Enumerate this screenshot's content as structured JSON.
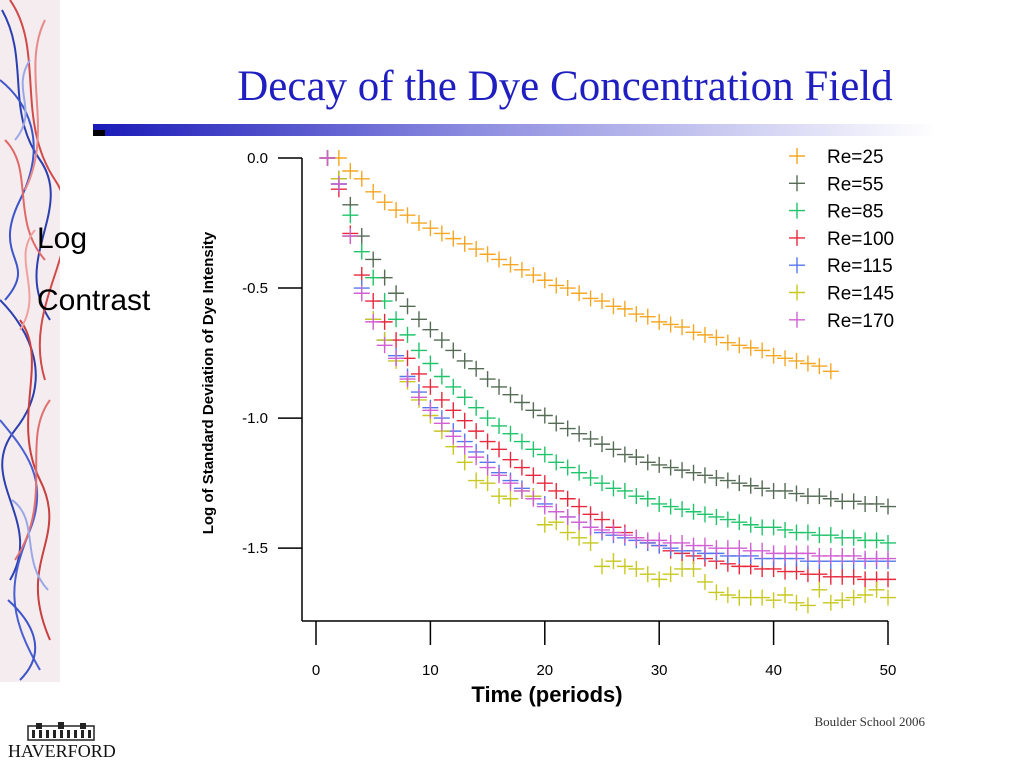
{
  "slide": {
    "title": "Decay of the Dye Concentration Field",
    "side_label_1": "Log",
    "side_label_2": "Contrast",
    "footer": "Boulder School 2006",
    "logo_text": "HAVERFORD",
    "title_color": "#1f1fc1"
  },
  "chart_data": {
    "type": "scatter",
    "marker": "plus",
    "title": "",
    "xlabel": "Time (periods)",
    "ylabel": "Log of Standard Deviation of Dye Intensity",
    "xlim": [
      0,
      50
    ],
    "ylim": [
      -1.78,
      0.0
    ],
    "xticks": [
      0,
      10,
      20,
      30,
      40,
      50
    ],
    "yticks": [
      0.0,
      -0.5,
      -1.0,
      -1.5
    ],
    "xtick_labels": [
      "0",
      "10",
      "20",
      "30",
      "40",
      "50"
    ],
    "ytick_labels": [
      "0.0",
      "-0.5",
      "-1.0",
      "-1.5"
    ],
    "grid": false,
    "legend_position": "top-right",
    "series": [
      {
        "name": "Re=25",
        "color": "#f5a623",
        "x": [
          1,
          2,
          3,
          4,
          5,
          6,
          7,
          8,
          9,
          10,
          11,
          12,
          13,
          14,
          15,
          16,
          17,
          18,
          19,
          20,
          21,
          22,
          23,
          24,
          25,
          26,
          27,
          28,
          29,
          30,
          31,
          32,
          33,
          34,
          35,
          36,
          37,
          38,
          39,
          40,
          41,
          42,
          43,
          44,
          45
        ],
        "y": [
          0.0,
          0.0,
          -0.05,
          -0.08,
          -0.13,
          -0.17,
          -0.2,
          -0.22,
          -0.25,
          -0.27,
          -0.29,
          -0.31,
          -0.33,
          -0.35,
          -0.37,
          -0.39,
          -0.41,
          -0.43,
          -0.45,
          -0.47,
          -0.49,
          -0.5,
          -0.52,
          -0.54,
          -0.55,
          -0.57,
          -0.58,
          -0.6,
          -0.61,
          -0.63,
          -0.64,
          -0.65,
          -0.67,
          -0.68,
          -0.69,
          -0.71,
          -0.72,
          -0.73,
          -0.74,
          -0.76,
          -0.77,
          -0.78,
          -0.79,
          -0.8,
          -0.82
        ]
      },
      {
        "name": "Re=55",
        "color": "#556b55",
        "x": [
          1,
          2,
          3,
          4,
          5,
          6,
          7,
          8,
          9,
          10,
          11,
          12,
          13,
          14,
          15,
          16,
          17,
          18,
          19,
          20,
          21,
          22,
          23,
          24,
          25,
          26,
          27,
          28,
          29,
          30,
          31,
          32,
          33,
          34,
          35,
          36,
          37,
          38,
          39,
          40,
          41,
          42,
          43,
          44,
          45,
          46,
          47,
          48,
          49,
          50
        ],
        "y": [
          0.0,
          -0.08,
          -0.18,
          -0.3,
          -0.39,
          -0.46,
          -0.52,
          -0.57,
          -0.62,
          -0.66,
          -0.7,
          -0.74,
          -0.78,
          -0.81,
          -0.85,
          -0.88,
          -0.91,
          -0.94,
          -0.97,
          -0.99,
          -1.02,
          -1.04,
          -1.06,
          -1.08,
          -1.1,
          -1.12,
          -1.14,
          -1.15,
          -1.17,
          -1.18,
          -1.19,
          -1.2,
          -1.21,
          -1.22,
          -1.23,
          -1.24,
          -1.25,
          -1.26,
          -1.27,
          -1.28,
          -1.28,
          -1.29,
          -1.3,
          -1.3,
          -1.31,
          -1.32,
          -1.32,
          -1.33,
          -1.33,
          -1.34
        ]
      },
      {
        "name": "Re=85",
        "color": "#1fc46a",
        "x": [
          1,
          2,
          3,
          4,
          5,
          6,
          7,
          8,
          9,
          10,
          11,
          12,
          13,
          14,
          15,
          16,
          17,
          18,
          19,
          20,
          21,
          22,
          23,
          24,
          25,
          26,
          27,
          28,
          29,
          30,
          31,
          32,
          33,
          34,
          35,
          36,
          37,
          38,
          39,
          40,
          41,
          42,
          43,
          44,
          45,
          46,
          47,
          48,
          49,
          50
        ],
        "y": [
          0.0,
          -0.1,
          -0.22,
          -0.36,
          -0.46,
          -0.55,
          -0.62,
          -0.68,
          -0.74,
          -0.79,
          -0.84,
          -0.88,
          -0.92,
          -0.96,
          -1.0,
          -1.03,
          -1.06,
          -1.09,
          -1.12,
          -1.14,
          -1.17,
          -1.19,
          -1.21,
          -1.23,
          -1.25,
          -1.27,
          -1.28,
          -1.3,
          -1.31,
          -1.33,
          -1.34,
          -1.35,
          -1.36,
          -1.37,
          -1.38,
          -1.39,
          -1.4,
          -1.41,
          -1.42,
          -1.42,
          -1.43,
          -1.44,
          -1.44,
          -1.45,
          -1.45,
          -1.46,
          -1.46,
          -1.47,
          -1.47,
          -1.48
        ]
      },
      {
        "name": "Re=100",
        "color": "#e8283c",
        "x": [
          1,
          2,
          3,
          4,
          5,
          6,
          7,
          8,
          9,
          10,
          11,
          12,
          13,
          14,
          15,
          16,
          17,
          18,
          19,
          20,
          21,
          22,
          23,
          24,
          25,
          26,
          27,
          28,
          29,
          30,
          31,
          32,
          33,
          34,
          35,
          36,
          37,
          38,
          39,
          40,
          41,
          42,
          43,
          44,
          45,
          46,
          47,
          48,
          49,
          50
        ],
        "y": [
          0.0,
          -0.12,
          -0.29,
          -0.45,
          -0.55,
          -0.63,
          -0.7,
          -0.77,
          -0.83,
          -0.88,
          -0.93,
          -0.97,
          -1.01,
          -1.05,
          -1.09,
          -1.12,
          -1.16,
          -1.19,
          -1.22,
          -1.25,
          -1.28,
          -1.31,
          -1.34,
          -1.37,
          -1.39,
          -1.42,
          -1.44,
          -1.46,
          -1.48,
          -1.49,
          -1.51,
          -1.52,
          -1.53,
          -1.54,
          -1.55,
          -1.56,
          -1.57,
          -1.57,
          -1.58,
          -1.58,
          -1.59,
          -1.59,
          -1.6,
          -1.6,
          -1.61,
          -1.61,
          -1.61,
          -1.62,
          -1.62,
          -1.62
        ]
      },
      {
        "name": "Re=115",
        "color": "#5577ee",
        "x": [
          1,
          2,
          3,
          4,
          5,
          6,
          7,
          8,
          9,
          10,
          11,
          12,
          13,
          14,
          15,
          16,
          17,
          18,
          19,
          20,
          21,
          22,
          23,
          24,
          25,
          26,
          27,
          28,
          29,
          30,
          31,
          32,
          33,
          34,
          35,
          36,
          37,
          38,
          39,
          40,
          41,
          42,
          43,
          44,
          45,
          46,
          47,
          48,
          49,
          50
        ],
        "y": [
          0.0,
          -0.1,
          -0.3,
          -0.5,
          -0.62,
          -0.7,
          -0.76,
          -0.84,
          -0.9,
          -0.96,
          -1.0,
          -1.05,
          -1.09,
          -1.13,
          -1.17,
          -1.21,
          -1.24,
          -1.27,
          -1.3,
          -1.33,
          -1.36,
          -1.38,
          -1.4,
          -1.42,
          -1.44,
          -1.45,
          -1.46,
          -1.47,
          -1.48,
          -1.49,
          -1.5,
          -1.51,
          -1.51,
          -1.52,
          -1.52,
          -1.53,
          -1.53,
          -1.53,
          -1.54,
          -1.54,
          -1.54,
          -1.54,
          -1.55,
          -1.55,
          -1.55,
          -1.55,
          -1.55,
          -1.55,
          -1.55,
          -1.55
        ]
      },
      {
        "name": "Re=145",
        "color": "#c8c820",
        "x": [
          1,
          2,
          3,
          4,
          5,
          6,
          7,
          8,
          9,
          10,
          11,
          12,
          13,
          14,
          15,
          16,
          17,
          18,
          19,
          20,
          21,
          22,
          23,
          24,
          25,
          26,
          27,
          28,
          29,
          30,
          31,
          32,
          33,
          34,
          35,
          36,
          37,
          38,
          39,
          40,
          41,
          42,
          43,
          44,
          45,
          46,
          47,
          48,
          49,
          50
        ],
        "y": [
          0.0,
          -0.08,
          -0.3,
          -0.52,
          -0.62,
          -0.7,
          -0.78,
          -0.86,
          -0.93,
          -0.99,
          -1.05,
          -1.11,
          -1.17,
          -1.24,
          -1.25,
          -1.3,
          -1.31,
          -1.28,
          -1.3,
          -1.41,
          -1.4,
          -1.44,
          -1.46,
          -1.48,
          -1.57,
          -1.55,
          -1.57,
          -1.58,
          -1.6,
          -1.62,
          -1.6,
          -1.58,
          -1.58,
          -1.63,
          -1.67,
          -1.68,
          -1.69,
          -1.69,
          -1.69,
          -1.7,
          -1.68,
          -1.71,
          -1.72,
          -1.66,
          -1.71,
          -1.7,
          -1.69,
          -1.68,
          -1.66,
          -1.69
        ]
      },
      {
        "name": "Re=170",
        "color": "#d260d2",
        "x": [
          1,
          2,
          3,
          4,
          5,
          6,
          7,
          8,
          9,
          10,
          11,
          12,
          13,
          14,
          15,
          16,
          17,
          18,
          19,
          20,
          21,
          22,
          23,
          24,
          25,
          26,
          27,
          28,
          29,
          30,
          31,
          32,
          33,
          34,
          35,
          36,
          37,
          38,
          39,
          40,
          41,
          42,
          43,
          44,
          45,
          46,
          47,
          48,
          49,
          50
        ],
        "y": [
          0.0,
          -0.1,
          -0.3,
          -0.52,
          -0.63,
          -0.72,
          -0.77,
          -0.85,
          -0.92,
          -0.97,
          -1.02,
          -1.07,
          -1.11,
          -1.15,
          -1.19,
          -1.22,
          -1.25,
          -1.28,
          -1.31,
          -1.34,
          -1.36,
          -1.38,
          -1.4,
          -1.42,
          -1.43,
          -1.44,
          -1.45,
          -1.46,
          -1.47,
          -1.47,
          -1.48,
          -1.48,
          -1.49,
          -1.49,
          -1.5,
          -1.5,
          -1.5,
          -1.51,
          -1.51,
          -1.52,
          -1.52,
          -1.52,
          -1.52,
          -1.53,
          -1.53,
          -1.53,
          -1.53,
          -1.54,
          -1.54,
          -1.54
        ]
      }
    ]
  }
}
